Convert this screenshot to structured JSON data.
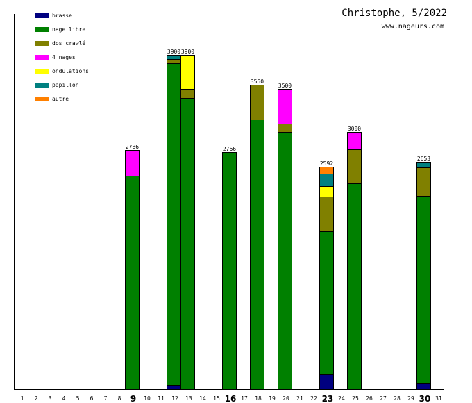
{
  "chart_data": {
    "type": "bar",
    "stacked": true,
    "title": "Christophe, 5/2022",
    "subtitle": "www.nageurs.com",
    "xlabel": "",
    "ylabel": "",
    "ylim": [
      0,
      3900
    ],
    "grid": false,
    "legend_position": "top-left",
    "categories": [
      "1",
      "2",
      "3",
      "4",
      "5",
      "6",
      "7",
      "8",
      "9",
      "10",
      "11",
      "12",
      "13",
      "14",
      "15",
      "16",
      "17",
      "18",
      "19",
      "20",
      "21",
      "22",
      "23",
      "24",
      "25",
      "26",
      "27",
      "28",
      "29",
      "30",
      "31"
    ],
    "highlighted_categories": [
      "9",
      "16",
      "23",
      "30"
    ],
    "series": [
      {
        "name": "brasse",
        "color": "#000080",
        "values": {
          "12": 50,
          "23": 175,
          "30": 75
        }
      },
      {
        "name": "nage libre",
        "color": "#008000",
        "values": {
          "9": 2486,
          "12": 3750,
          "13": 3400,
          "16": 2766,
          "18": 3150,
          "20": 3000,
          "23": 1667,
          "25": 2400,
          "30": 2178
        }
      },
      {
        "name": "dos crawlé",
        "color": "#808000",
        "values": {
          "12": 50,
          "13": 100,
          "18": 400,
          "20": 100,
          "23": 400,
          "25": 400,
          "30": 333
        }
      },
      {
        "name": "4 nages",
        "color": "#ff00ff",
        "values": {
          "9": 300,
          "20": 400,
          "25": 200
        }
      },
      {
        "name": "ondulations",
        "color": "#ffff00",
        "values": {
          "13": 400,
          "23": 125
        }
      },
      {
        "name": "papillon",
        "color": "#008080",
        "values": {
          "12": 50,
          "23": 150,
          "30": 67
        }
      },
      {
        "name": "autre",
        "color": "#ff8000",
        "values": {
          "23": 75
        }
      }
    ],
    "totals": {
      "9": 2786,
      "12": 3900,
      "13": 3900,
      "16": 2766,
      "18": 3550,
      "20": 3500,
      "23": 2592,
      "25": 3000,
      "30": 2653
    }
  }
}
